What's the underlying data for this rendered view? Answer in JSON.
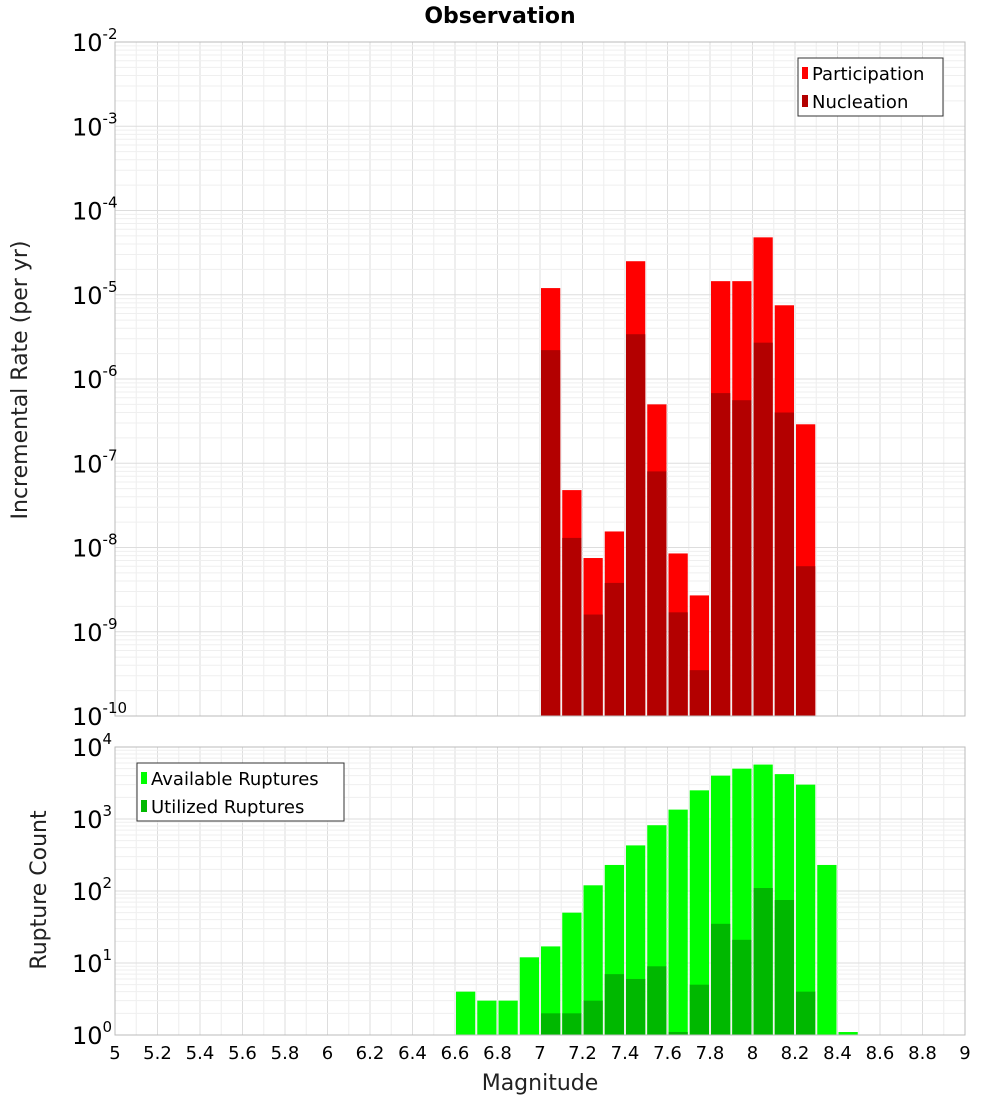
{
  "chart_data": [
    {
      "type": "bar",
      "title": "Observation",
      "xlabel": "",
      "ylabel": "Incremental Rate (per yr)",
      "yscale": "log",
      "xlim": [
        5,
        9
      ],
      "ylim": [
        1e-10,
        0.01
      ],
      "ytick_labels": [
        {
          "base": "10",
          "exp": "-2"
        },
        {
          "base": "10",
          "exp": "-3"
        },
        {
          "base": "10",
          "exp": "-4"
        },
        {
          "base": "10",
          "exp": "-5"
        },
        {
          "base": "10",
          "exp": "-6"
        },
        {
          "base": "10",
          "exp": "-7"
        },
        {
          "base": "10",
          "exp": "-8"
        },
        {
          "base": "10",
          "exp": "-9"
        },
        {
          "base": "10",
          "exp": "-10"
        }
      ],
      "legend": "top-right",
      "grid": true,
      "x": [
        7.05,
        7.15,
        7.25,
        7.35,
        7.45,
        7.55,
        7.65,
        7.75,
        7.85,
        7.95,
        8.05,
        8.15,
        8.25
      ],
      "series": [
        {
          "name": "Participation",
          "color": "#ff0000",
          "values": [
            1.2e-05,
            4.8e-08,
            7.5e-09,
            1.55e-08,
            2.5e-05,
            5e-07,
            8.5e-09,
            2.7e-09,
            1.45e-05,
            1.45e-05,
            4.8e-05,
            7.5e-06,
            2.9e-07
          ]
        },
        {
          "name": "Nucleation",
          "color": "#b30000",
          "values": [
            2.2e-06,
            1.3e-08,
            1.6e-09,
            3.8e-09,
            3.4e-06,
            8e-08,
            1.7e-09,
            3.5e-10,
            6.8e-07,
            5.6e-07,
            2.7e-06,
            4e-07,
            6e-09
          ]
        }
      ]
    },
    {
      "type": "bar",
      "title": "",
      "xlabel": "Magnitude",
      "ylabel": "Rupture Count",
      "yscale": "log",
      "xlim": [
        5,
        9
      ],
      "ylim": [
        1,
        10000
      ],
      "ytick_labels": [
        {
          "base": "10",
          "exp": "4"
        },
        {
          "base": "10",
          "exp": "3"
        },
        {
          "base": "10",
          "exp": "2"
        },
        {
          "base": "10",
          "exp": "1"
        },
        {
          "base": "10",
          "exp": "0"
        }
      ],
      "xtick_labels": [
        "5",
        "5.2",
        "5.4",
        "5.6",
        "5.8",
        "6",
        "6.2",
        "6.4",
        "6.6",
        "6.8",
        "7",
        "7.2",
        "7.4",
        "7.6",
        "7.8",
        "8",
        "8.2",
        "8.4",
        "8.6",
        "8.8",
        "9"
      ],
      "legend": "top-left",
      "grid": true,
      "x": [
        6.65,
        6.75,
        6.85,
        6.95,
        7.05,
        7.15,
        7.25,
        7.35,
        7.45,
        7.55,
        7.65,
        7.75,
        7.85,
        7.95,
        8.05,
        8.15,
        8.25,
        8.35,
        8.45
      ],
      "series": [
        {
          "name": "Available Ruptures",
          "color": "#00ff00",
          "values": [
            4,
            3,
            3,
            12,
            17,
            50,
            120,
            230,
            430,
            820,
            1350,
            2500,
            4000,
            5000,
            5700,
            4200,
            3000,
            230,
            1.1
          ]
        },
        {
          "name": "Utilized Ruptures",
          "color": "#00b800",
          "values": [
            0,
            0,
            0,
            0,
            2,
            2,
            3,
            7,
            6,
            9,
            1.1,
            5,
            35,
            21,
            110,
            75,
            4,
            0,
            0
          ]
        }
      ]
    }
  ]
}
